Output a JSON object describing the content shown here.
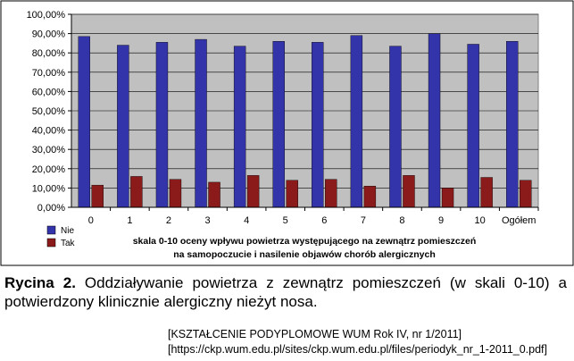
{
  "chart_data": {
    "type": "bar",
    "categories": [
      "0",
      "1",
      "2",
      "3",
      "4",
      "5",
      "6",
      "7",
      "8",
      "9",
      "10",
      "Ogółem"
    ],
    "series": [
      {
        "name": "Nie",
        "color": "#3333aa",
        "values": [
          88.5,
          84.0,
          85.5,
          87.0,
          83.5,
          86.0,
          85.5,
          89.0,
          83.5,
          90.0,
          84.5,
          86.0
        ]
      },
      {
        "name": "Tak",
        "color": "#8b1a1a",
        "values": [
          11.5,
          16.0,
          14.5,
          13.0,
          16.5,
          14.0,
          14.5,
          11.0,
          16.5,
          10.0,
          15.5,
          14.0
        ]
      }
    ],
    "ylim": [
      0,
      100
    ],
    "yticks": [
      "0,00%",
      "10,00%",
      "20,00%",
      "30,00%",
      "40,00%",
      "50,00%",
      "60,00%",
      "70,00%",
      "80,00%",
      "90,00%",
      "100,00%"
    ],
    "xlabel_line1": "skala 0-10 oceny wpływu powietrza występującego na zewnątrz pomieszczeń",
    "xlabel_line2": "na samopoczucie i nasilenie objawów chorób alergicznych",
    "grid": true,
    "legend_position": "bottom-left",
    "plot_background": "#c0c0c0"
  },
  "caption": {
    "label": "Rycina 2.",
    "text": " Oddziaływanie powietrza z zewnątrz pomieszczeń (w skali 0-10) a potwierdzony klinicznie alergiczny nieżyt nosa."
  },
  "source": {
    "line1": "[KSZTAŁCENIE PODYPLOMOWE WUM Rok IV, nr 1/2011]",
    "line2": "[https://ckp.wum.edu.pl/sites/ckp.wum.edu.pl/files/periodyk_nr_1-2011_0.pdf]"
  }
}
